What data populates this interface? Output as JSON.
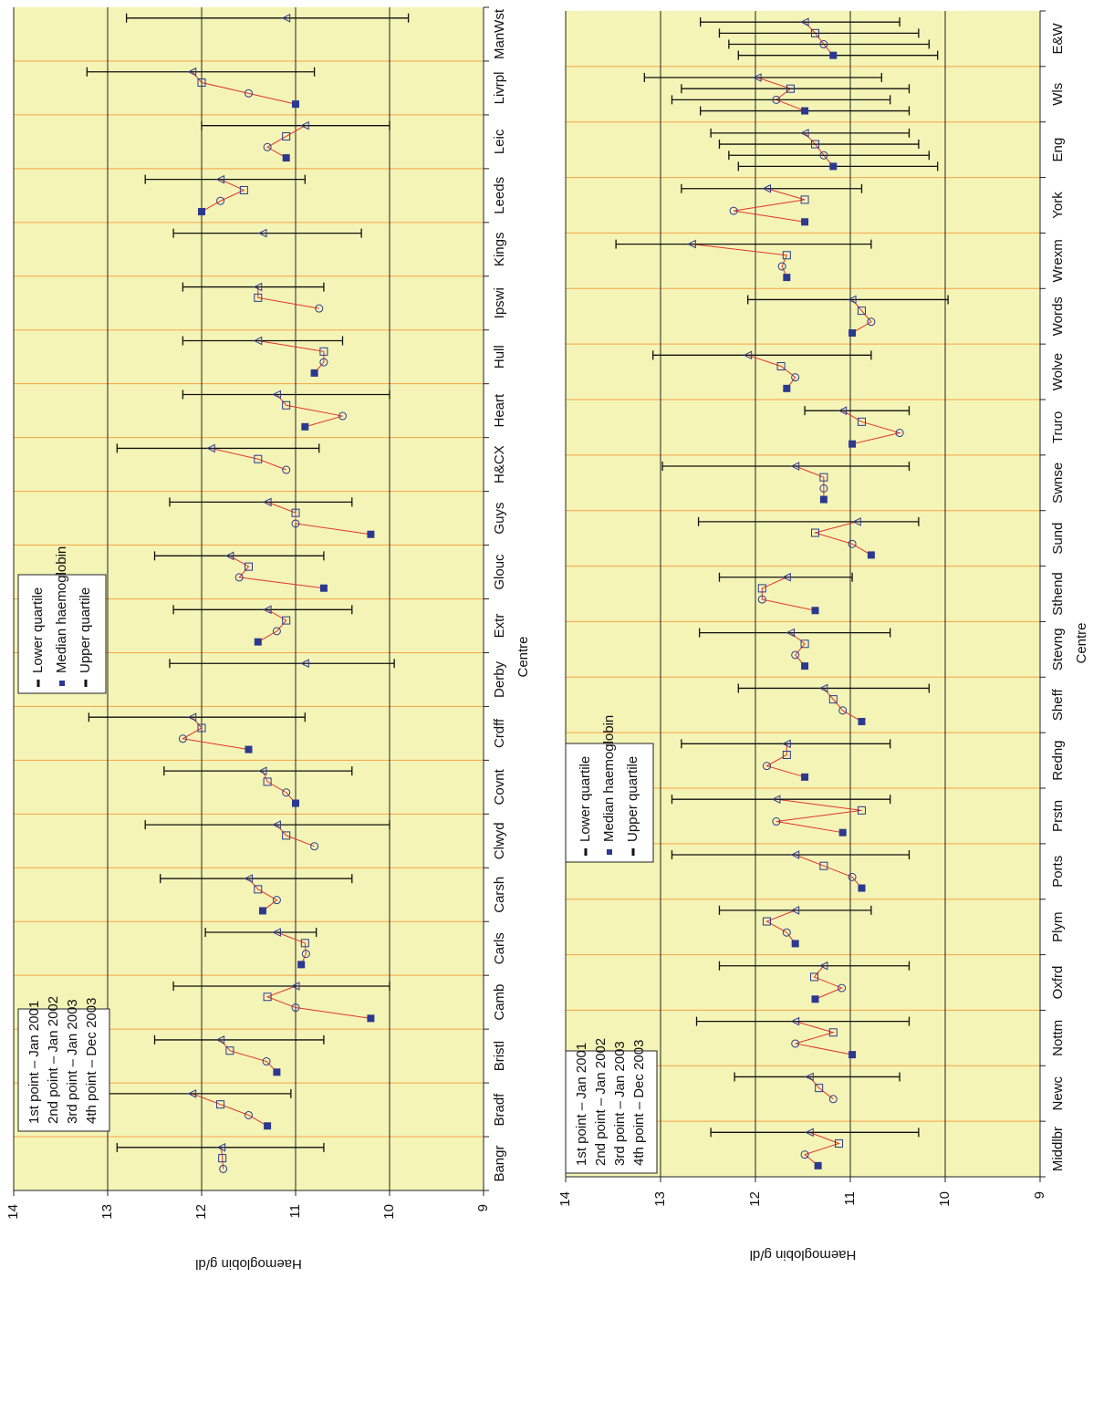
{
  "chart_data": [
    {
      "type": "line",
      "xlabel": "Centre",
      "ylabel": "Haemoglobin g/dl",
      "categories": [
        "Bangr",
        "Bradf",
        "Bristl",
        "Camb",
        "Carls",
        "Carsh",
        "Clwyd",
        "Covnt",
        "Crdff",
        "Derby",
        "Extr",
        "Glouc",
        "Guys",
        "H&CX",
        "Heart",
        "Hull",
        "Ipswi",
        "Kings",
        "Leeds",
        "Leic",
        "Livrpl",
        "ManWst"
      ],
      "ylim": [
        9,
        14
      ],
      "yticks": [
        9,
        10,
        11,
        12,
        13,
        14
      ],
      "grid": true,
      "line_color": "#e3342c",
      "legend": [
        "Lower quartile",
        "Median haemoglobin",
        "Upper quartile"
      ],
      "series": [
        {
          "name": "1st point – Jan 2001",
          "marker": "filled-square",
          "color": "#2b3990",
          "values": [
            null,
            11.3,
            11.2,
            10.2,
            10.94,
            11.35,
            null,
            11.0,
            11.5,
            null,
            11.4,
            10.7,
            10.2,
            null,
            10.9,
            10.8,
            null,
            null,
            12.0,
            11.1,
            11.0,
            null
          ]
        },
        {
          "name": "2nd point – Jan 2002",
          "marker": "circle",
          "color": "#2b3990",
          "values": [
            11.77,
            11.5,
            11.31,
            11.0,
            10.89,
            11.2,
            10.8,
            11.1,
            12.2,
            null,
            11.2,
            11.6,
            11.0,
            11.1,
            10.5,
            10.7,
            10.75,
            null,
            11.8,
            11.3,
            11.5,
            null
          ]
        },
        {
          "name": "3rd point – Jan 2003",
          "marker": "open-square",
          "color": "#2b3990",
          "values": [
            11.78,
            11.8,
            11.7,
            11.3,
            10.9,
            11.4,
            11.1,
            11.3,
            12.0,
            null,
            11.1,
            11.5,
            11.0,
            11.4,
            11.1,
            10.7,
            11.4,
            null,
            11.55,
            11.1,
            12.0,
            null
          ]
        },
        {
          "name": "4th point – Dec 2003",
          "marker": "triangle",
          "color": "#2b3990",
          "values": [
            11.79,
            12.1,
            11.8,
            11.0,
            11.2,
            11.5,
            11.2,
            11.35,
            12.1,
            10.9,
            11.3,
            11.7,
            11.3,
            11.9,
            11.2,
            11.4,
            11.4,
            11.35,
            11.8,
            10.9,
            12.1,
            11.1
          ],
          "lower_quartile": [
            10.7,
            11.05,
            10.7,
            10.0,
            10.78,
            10.4,
            10.0,
            10.4,
            10.9,
            9.95,
            10.4,
            10.7,
            10.4,
            10.75,
            10.0,
            10.5,
            10.7,
            10.3,
            10.9,
            10.0,
            10.8,
            9.8
          ],
          "upper_quartile": [
            12.9,
            13.1,
            12.5,
            12.3,
            11.96,
            12.44,
            12.6,
            12.4,
            13.2,
            12.34,
            12.3,
            12.5,
            12.34,
            12.9,
            12.2,
            12.2,
            12.2,
            12.3,
            12.6,
            12.0,
            13.22,
            12.8
          ]
        }
      ]
    },
    {
      "type": "line",
      "xlabel": "Centre",
      "ylabel": "Haemoglobin g/dl",
      "categories": [
        "Middlbr",
        "Newc",
        "Nottm",
        "Oxfrd",
        "Plym",
        "Ports",
        "Prstn",
        "Redng",
        "Sheff",
        "Stevng",
        "Sthend",
        "Sund",
        "Swnse",
        "Truro",
        "Wolve",
        "Words",
        "Wrexm",
        "York",
        "Eng",
        "Wls",
        "E&W"
      ],
      "ylim": [
        9,
        14
      ],
      "yticks": [
        9,
        10,
        11,
        12,
        13,
        14
      ],
      "grid": true,
      "line_color": "#e3342c",
      "legend": [
        "Lower quartile",
        "Median haemoglobin",
        "Upper quartile"
      ],
      "series": [
        {
          "name": "1st point – Jan 2001",
          "marker": "filled-square",
          "color": "#2b3990",
          "values": [
            11.34,
            null,
            10.98,
            11.37,
            11.58,
            10.88,
            11.08,
            11.48,
            10.88,
            11.48,
            11.37,
            10.78,
            11.28,
            10.98,
            11.67,
            10.98,
            11.67,
            11.48,
            11.18,
            11.48,
            11.18
          ],
          "lower_quartile": [
            null,
            null,
            null,
            null,
            null,
            null,
            null,
            null,
            null,
            null,
            null,
            null,
            null,
            null,
            null,
            null,
            null,
            null,
            10.08,
            10.38,
            10.08
          ],
          "upper_quartile": [
            null,
            null,
            null,
            null,
            null,
            null,
            null,
            null,
            null,
            null,
            null,
            null,
            null,
            null,
            null,
            null,
            null,
            null,
            12.18,
            12.58,
            12.18
          ]
        },
        {
          "name": "2nd point – Jan 2002",
          "marker": "circle",
          "color": "#2b3990",
          "values": [
            11.48,
            11.18,
            11.58,
            11.09,
            11.67,
            10.98,
            11.78,
            11.88,
            11.08,
            11.58,
            11.93,
            10.98,
            11.28,
            10.48,
            11.58,
            10.78,
            11.72,
            12.23,
            11.28,
            11.78,
            11.28
          ],
          "lower_quartile": [
            null,
            null,
            null,
            null,
            null,
            null,
            null,
            null,
            null,
            null,
            null,
            null,
            null,
            null,
            null,
            null,
            null,
            null,
            10.17,
            10.58,
            10.17
          ],
          "upper_quartile": [
            null,
            null,
            null,
            null,
            null,
            null,
            null,
            null,
            null,
            null,
            null,
            null,
            null,
            null,
            null,
            null,
            null,
            null,
            12.28,
            12.88,
            12.28
          ]
        },
        {
          "name": "3rd point – Jan 2003",
          "marker": "open-square",
          "color": "#2b3990",
          "values": [
            11.12,
            11.33,
            11.18,
            11.38,
            11.88,
            11.28,
            10.88,
            11.67,
            11.18,
            11.48,
            11.93,
            11.37,
            11.28,
            10.88,
            11.73,
            10.88,
            11.67,
            11.48,
            11.37,
            11.63,
            11.37
          ],
          "lower_quartile": [
            null,
            null,
            null,
            null,
            null,
            null,
            null,
            null,
            null,
            null,
            null,
            null,
            null,
            null,
            null,
            null,
            null,
            null,
            10.28,
            10.38,
            10.28
          ],
          "upper_quartile": [
            null,
            null,
            null,
            null,
            null,
            null,
            null,
            null,
            null,
            null,
            null,
            null,
            null,
            null,
            null,
            null,
            null,
            null,
            12.38,
            12.78,
            12.38
          ]
        },
        {
          "name": "4th point – Dec 2003",
          "marker": "triangle",
          "color": "#2b3990",
          "values": [
            11.43,
            11.43,
            11.58,
            11.28,
            11.58,
            11.58,
            11.78,
            11.67,
            11.28,
            11.63,
            11.67,
            10.93,
            11.58,
            11.08,
            12.08,
            10.98,
            12.67,
            11.88,
            11.48,
            11.98,
            11.48
          ],
          "lower_quartile": [
            10.28,
            10.48,
            10.38,
            10.38,
            10.78,
            10.38,
            10.58,
            10.58,
            10.17,
            10.58,
            10.98,
            10.28,
            10.38,
            10.38,
            10.78,
            9.97,
            10.78,
            10.88,
            10.38,
            10.67,
            10.48
          ],
          "upper_quartile": [
            12.47,
            12.22,
            12.62,
            12.38,
            12.38,
            12.88,
            12.88,
            12.78,
            12.18,
            12.59,
            12.38,
            12.6,
            12.98,
            11.48,
            13.08,
            12.08,
            13.47,
            12.78,
            12.47,
            13.17,
            12.58
          ]
        }
      ]
    }
  ]
}
